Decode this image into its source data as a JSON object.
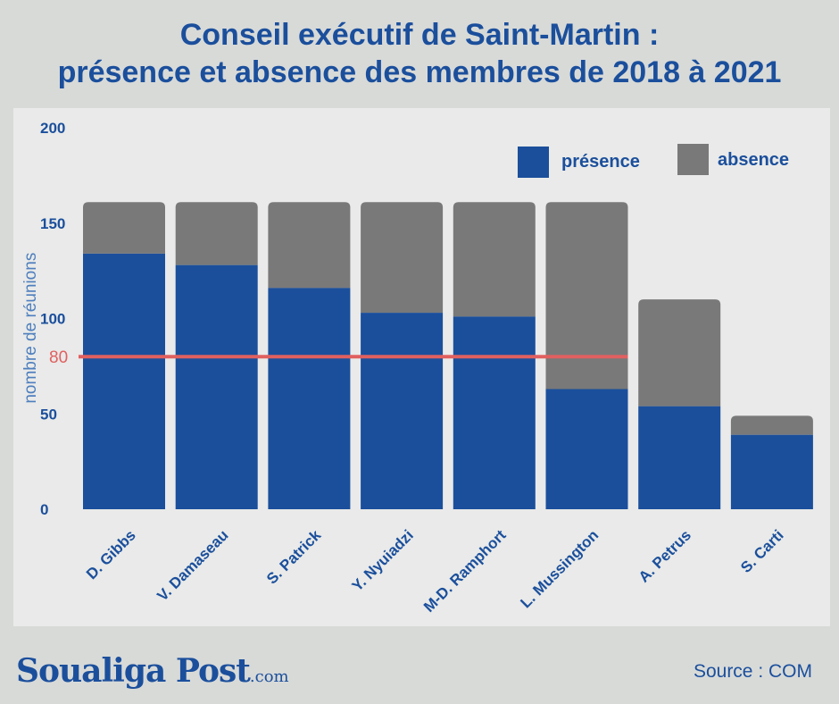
{
  "title_line1": "Conseil exécutif de Saint-Martin :",
  "title_line2": "présence et absence des membres de 2018 à 2021",
  "source": "Source : COM",
  "logo": {
    "name": "Soualiga Post",
    "suffix": ".com"
  },
  "colors": {
    "presence": "#1b4f9c",
    "absence": "#797979",
    "reference": "#e06060"
  },
  "chart_data": {
    "type": "bar",
    "stacked": true,
    "categories": [
      "D. Gibbs",
      "V. Damaseau",
      "S. Patrick",
      "Y. Nyuiadzi",
      "M-D. Ramphort",
      "L. Mussington",
      "A. Petrus",
      "S. Carti"
    ],
    "series": [
      {
        "name": "présence",
        "values": [
          134,
          128,
          116,
          103,
          101,
          63,
          54,
          39
        ]
      },
      {
        "name": "absence",
        "values": [
          27,
          33,
          45,
          58,
          60,
          98,
          56,
          10
        ]
      }
    ],
    "ylabel": "nombre  de réunions",
    "yticks": [
      0,
      50,
      100,
      150,
      200
    ],
    "ylim": [
      0,
      200
    ],
    "reference_line": {
      "value": 80,
      "label": "80"
    },
    "legend_position": "top-right"
  }
}
